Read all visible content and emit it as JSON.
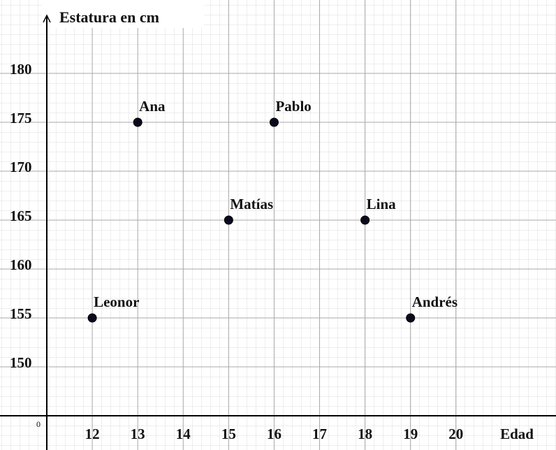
{
  "chart_data": {
    "type": "scatter",
    "title": "Estatura en cm",
    "x_label": "Edad",
    "origin_label": "0",
    "x": [
      12,
      13,
      15,
      16,
      18,
      19
    ],
    "values": [
      155,
      175,
      165,
      175,
      165,
      155
    ],
    "labels": [
      "Leonor",
      "Ana",
      "Matías",
      "Pablo",
      "Lina",
      "Andrés"
    ],
    "color": "#0a0a1e",
    "xlim": [
      11,
      22.2
    ],
    "ylim": [
      145,
      187.5
    ],
    "xticks": [
      12,
      13,
      14,
      15,
      16,
      17,
      18,
      19,
      20
    ],
    "yticks": [
      150,
      155,
      160,
      165,
      170,
      175,
      180
    ],
    "grid": true
  }
}
